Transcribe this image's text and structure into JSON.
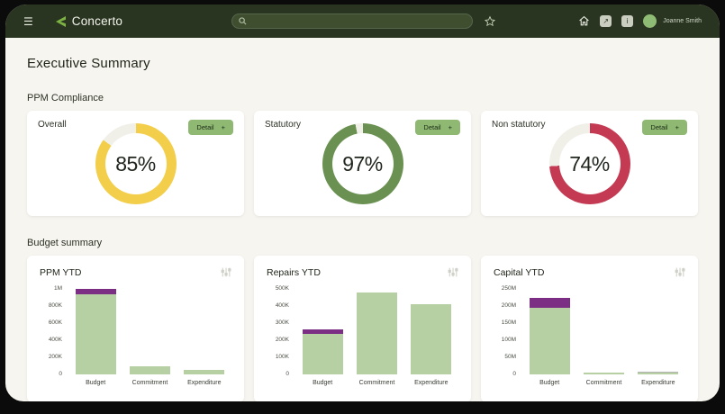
{
  "navbar": {
    "brand": "Concerto",
    "user_name": "Joanne Smith",
    "search_placeholder": ""
  },
  "page": {
    "title": "Executive Summary"
  },
  "sections": {
    "ppm": "PPM Compliance",
    "budget": "Budget summary"
  },
  "buttons": {
    "detail_label": "Detail",
    "detail_plus": "+"
  },
  "colors": {
    "navbar_bg": "#2a3521",
    "accent_button_green": "#8fb873",
    "donut_yellow": "#f2ce4a",
    "donut_green": "#6a9151",
    "donut_red": "#c43a52",
    "bar_green": "#b6cfa3",
    "bar_purple": "#7c2e84",
    "bar_grey": "#b4b4b4"
  },
  "chart_data": {
    "donuts": [
      {
        "type": "donut",
        "title": "Overall",
        "value": 85,
        "label": "85%",
        "color": "#f2ce4a",
        "track_color": "#f0efe8"
      },
      {
        "type": "donut",
        "title": "Statutory",
        "value": 97,
        "label": "97%",
        "color": "#6a9151",
        "track_color": "#f0efe8"
      },
      {
        "type": "donut",
        "title": "Non statutory",
        "value": 74,
        "label": "74%",
        "color": "#c43a52",
        "track_color": "#f0efe8"
      }
    ],
    "bars": [
      {
        "type": "bar",
        "title": "PPM YTD",
        "categories": [
          "Budget",
          "Commitment",
          "Expenditure"
        ],
        "series": [
          {
            "name": "green",
            "color": "#b6cfa3",
            "values": [
              940000,
              90000,
              55000
            ]
          },
          {
            "name": "purple",
            "color": "#7c2e84",
            "values": [
              60000,
              0,
              0
            ]
          },
          {
            "name": "grey",
            "color": "#b4b4b4",
            "values": [
              0,
              0,
              0
            ]
          }
        ],
        "ylim": [
          0,
          1000000
        ],
        "yticks": [
          [
            0,
            "0"
          ],
          [
            200000,
            "200K"
          ],
          [
            400000,
            "400K"
          ],
          [
            600000,
            "600K"
          ],
          [
            800000,
            "800K"
          ],
          [
            1000000,
            "1M"
          ]
        ],
        "legend": "off",
        "grid": "off"
      },
      {
        "type": "bar",
        "title": "Repairs YTD",
        "categories": [
          "Budget",
          "Commitment",
          "Expenditure"
        ],
        "series": [
          {
            "name": "green",
            "color": "#b6cfa3",
            "values": [
              235000,
              480000,
              410000
            ]
          },
          {
            "name": "purple",
            "color": "#7c2e84",
            "values": [
              30000,
              0,
              0
            ]
          },
          {
            "name": "grey",
            "color": "#b4b4b4",
            "values": [
              0,
              0,
              0
            ]
          }
        ],
        "ylim": [
          0,
          500000
        ],
        "yticks": [
          [
            0,
            "0"
          ],
          [
            100000,
            "100K"
          ],
          [
            200000,
            "200K"
          ],
          [
            300000,
            "300K"
          ],
          [
            400000,
            "400K"
          ],
          [
            500000,
            "500K"
          ]
        ],
        "legend": "off",
        "grid": "off"
      },
      {
        "type": "bar",
        "title": "Capital YTD",
        "categories": [
          "Budget",
          "Commitment",
          "Expenditure"
        ],
        "series": [
          {
            "name": "green",
            "color": "#b6cfa3",
            "values": [
              195000000,
              5000000,
              4000000
            ]
          },
          {
            "name": "purple",
            "color": "#7c2e84",
            "values": [
              30000000,
              0,
              0
            ]
          },
          {
            "name": "grey",
            "color": "#b4b4b4",
            "values": [
              0,
              0,
              2000000
            ]
          }
        ],
        "ylim": [
          0,
          250000000
        ],
        "yticks": [
          [
            0,
            "0"
          ],
          [
            50000000,
            "50M"
          ],
          [
            100000000,
            "100M"
          ],
          [
            150000000,
            "150M"
          ],
          [
            200000000,
            "200M"
          ],
          [
            250000000,
            "250M"
          ]
        ],
        "legend": "off",
        "grid": "off"
      }
    ]
  }
}
